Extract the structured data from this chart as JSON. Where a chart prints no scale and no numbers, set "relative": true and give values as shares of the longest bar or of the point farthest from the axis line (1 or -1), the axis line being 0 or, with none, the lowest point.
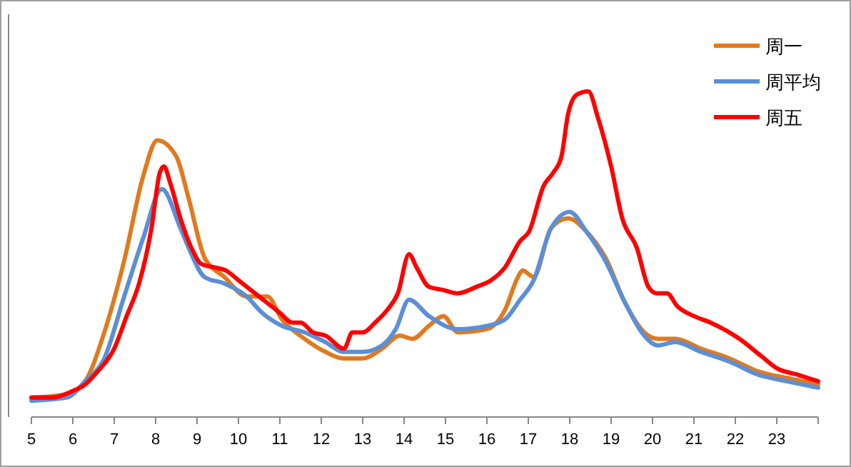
{
  "chart_data": {
    "type": "line",
    "relative": true,
    "xlim": [
      5,
      24
    ],
    "xticks": [
      5,
      6,
      7,
      8,
      9,
      10,
      11,
      12,
      13,
      14,
      15,
      16,
      17,
      18,
      19,
      20,
      21,
      22,
      23
    ],
    "legend": "top right",
    "series": [
      {
        "name": "周一",
        "color": "#e07a1f",
        "x": [
          5.0,
          5.86,
          6.3,
          6.76,
          7.24,
          7.7,
          8.04,
          8.5,
          8.8,
          9.18,
          9.66,
          10.2,
          10.7,
          11.05,
          11.6,
          12.1,
          12.53,
          13.0,
          13.47,
          13.9,
          14.2,
          14.6,
          14.95,
          15.3,
          16.0,
          16.44,
          16.75,
          16.86,
          17.13,
          17.55,
          17.96,
          18.4,
          18.86,
          19.34,
          19.8,
          20.13,
          20.55,
          21.17,
          21.86,
          22.55,
          23.24,
          24.0
        ],
        "values": [
          0.06,
          0.07,
          0.11,
          0.26,
          0.48,
          0.74,
          0.85,
          0.8,
          0.67,
          0.49,
          0.43,
          0.37,
          0.37,
          0.3,
          0.24,
          0.2,
          0.18,
          0.18,
          0.21,
          0.25,
          0.24,
          0.28,
          0.31,
          0.26,
          0.27,
          0.33,
          0.43,
          0.45,
          0.43,
          0.58,
          0.61,
          0.57,
          0.49,
          0.35,
          0.26,
          0.24,
          0.24,
          0.21,
          0.18,
          0.14,
          0.12,
          0.1
        ]
      },
      {
        "name": "周平均",
        "color": "#5b8fd6",
        "x": [
          5.0,
          5.86,
          6.3,
          6.76,
          7.24,
          7.7,
          8.15,
          8.6,
          8.83,
          9.18,
          9.66,
          10.2,
          10.57,
          11.05,
          11.6,
          12.1,
          12.53,
          13.0,
          13.47,
          13.8,
          14.12,
          14.6,
          15.3,
          16.0,
          16.44,
          16.8,
          17.13,
          17.55,
          18.0,
          18.4,
          18.86,
          19.34,
          19.8,
          20.13,
          20.55,
          21.17,
          21.86,
          22.55,
          23.24,
          24.0
        ],
        "values": [
          0.05,
          0.06,
          0.11,
          0.18,
          0.37,
          0.55,
          0.7,
          0.58,
          0.51,
          0.43,
          0.41,
          0.37,
          0.32,
          0.28,
          0.26,
          0.23,
          0.2,
          0.2,
          0.22,
          0.27,
          0.36,
          0.31,
          0.27,
          0.28,
          0.3,
          0.36,
          0.42,
          0.58,
          0.63,
          0.57,
          0.48,
          0.35,
          0.25,
          0.22,
          0.23,
          0.2,
          0.17,
          0.13,
          0.11,
          0.09
        ]
      },
      {
        "name": "周五",
        "color": "#ff0000",
        "x": [
          5.0,
          5.5,
          6.0,
          6.3,
          6.6,
          7.0,
          7.3,
          7.6,
          7.9,
          8.1,
          8.2,
          8.35,
          8.6,
          8.9,
          9.1,
          9.4,
          9.7,
          10.0,
          10.3,
          10.6,
          11.0,
          11.3,
          11.5,
          11.8,
          12.1,
          12.55,
          12.75,
          13.0,
          13.3,
          13.6,
          13.85,
          14.12,
          14.3,
          14.6,
          14.95,
          15.3,
          15.75,
          16.1,
          16.44,
          16.8,
          17.02,
          17.37,
          17.6,
          17.8,
          17.96,
          18.17,
          18.45,
          18.68,
          19.0,
          19.27,
          19.62,
          19.9,
          20.1,
          20.35,
          20.6,
          21.0,
          21.4,
          22.1,
          22.6,
          23.0,
          23.5,
          24.0
        ],
        "values": [
          0.06,
          0.06,
          0.08,
          0.1,
          0.14,
          0.21,
          0.31,
          0.41,
          0.58,
          0.75,
          0.77,
          0.72,
          0.61,
          0.51,
          0.47,
          0.46,
          0.45,
          0.42,
          0.39,
          0.36,
          0.32,
          0.29,
          0.29,
          0.26,
          0.25,
          0.21,
          0.26,
          0.26,
          0.29,
          0.33,
          0.38,
          0.5,
          0.46,
          0.4,
          0.39,
          0.38,
          0.4,
          0.42,
          0.46,
          0.54,
          0.57,
          0.71,
          0.75,
          0.8,
          0.93,
          0.99,
          1,
          0.92,
          0.77,
          0.61,
          0.52,
          0.4,
          0.38,
          0.38,
          0.34,
          0.31,
          0.29,
          0.24,
          0.19,
          0.15,
          0.13,
          0.11
        ]
      }
    ]
  }
}
